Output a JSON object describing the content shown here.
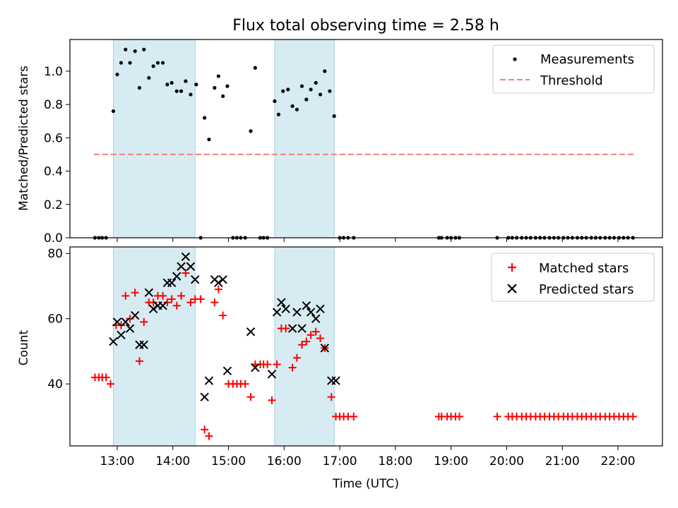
{
  "chart_data": [
    {
      "type": "scatter",
      "title": "Flux total observing time = 2.58 h",
      "xlabel": "",
      "ylabel": "Matched/Predicted stars",
      "ylim": [
        0,
        1.19
      ],
      "yticks": [
        "0.0",
        "0.2",
        "0.4",
        "0.6",
        "0.8",
        "1.0"
      ],
      "ytick_values": [
        0,
        0.2,
        0.4,
        0.6,
        0.8,
        1.0
      ],
      "legend_position": "top-right",
      "shaded_intervals": [
        [
          12.93,
          14.4
        ],
        [
          15.83,
          16.9
        ]
      ],
      "series": [
        {
          "name": "Measurements",
          "marker": "dot",
          "color": "#000000",
          "points": [
            [
              12.6,
              0
            ],
            [
              12.67,
              0
            ],
            [
              12.73,
              0
            ],
            [
              12.8,
              0
            ],
            [
              12.93,
              0.76
            ],
            [
              13.0,
              0.98
            ],
            [
              13.07,
              1.05
            ],
            [
              13.15,
              1.13
            ],
            [
              13.23,
              1.05
            ],
            [
              13.32,
              1.12
            ],
            [
              13.4,
              0.9
            ],
            [
              13.48,
              1.13
            ],
            [
              13.57,
              0.96
            ],
            [
              13.65,
              1.03
            ],
            [
              13.73,
              1.05
            ],
            [
              13.82,
              1.05
            ],
            [
              13.9,
              0.92
            ],
            [
              13.98,
              0.93
            ],
            [
              14.07,
              0.88
            ],
            [
              14.15,
              0.88
            ],
            [
              14.23,
              0.94
            ],
            [
              14.32,
              0.86
            ],
            [
              14.42,
              0.92
            ],
            [
              14.5,
              0
            ],
            [
              14.57,
              0.72
            ],
            [
              14.65,
              0.59
            ],
            [
              14.75,
              0.9
            ],
            [
              14.82,
              0.97
            ],
            [
              14.9,
              0.85
            ],
            [
              14.98,
              0.91
            ],
            [
              15.08,
              0
            ],
            [
              15.15,
              0
            ],
            [
              15.22,
              0
            ],
            [
              15.3,
              0
            ],
            [
              15.4,
              0.64
            ],
            [
              15.48,
              1.02
            ],
            [
              15.57,
              0
            ],
            [
              15.63,
              0
            ],
            [
              15.7,
              0
            ],
            [
              15.83,
              0.82
            ],
            [
              15.9,
              0.74
            ],
            [
              15.98,
              0.88
            ],
            [
              16.07,
              0.89
            ],
            [
              16.15,
              0.79
            ],
            [
              16.23,
              0.77
            ],
            [
              16.32,
              0.91
            ],
            [
              16.4,
              0.83
            ],
            [
              16.48,
              0.89
            ],
            [
              16.57,
              0.93
            ],
            [
              16.65,
              0.86
            ],
            [
              16.73,
              1.0
            ],
            [
              16.82,
              0.88
            ],
            [
              16.9,
              0.73
            ],
            [
              17.0,
              0
            ],
            [
              17.07,
              0
            ],
            [
              17.15,
              0
            ],
            [
              17.25,
              0
            ],
            [
              18.78,
              0
            ],
            [
              18.83,
              0
            ],
            [
              18.93,
              0
            ],
            [
              19.0,
              0
            ],
            [
              19.08,
              0
            ],
            [
              19.15,
              0
            ],
            [
              19.83,
              0
            ],
            [
              20.03,
              0
            ],
            [
              20.1,
              0
            ],
            [
              20.18,
              0
            ],
            [
              20.27,
              0
            ],
            [
              20.35,
              0
            ],
            [
              20.43,
              0
            ],
            [
              20.52,
              0
            ],
            [
              20.6,
              0
            ],
            [
              20.68,
              0
            ],
            [
              20.77,
              0
            ],
            [
              20.85,
              0
            ],
            [
              20.93,
              0
            ],
            [
              21.02,
              0
            ],
            [
              21.1,
              0
            ],
            [
              21.18,
              0
            ],
            [
              21.27,
              0
            ],
            [
              21.35,
              0
            ],
            [
              21.43,
              0
            ],
            [
              21.52,
              0
            ],
            [
              21.6,
              0
            ],
            [
              21.68,
              0
            ],
            [
              21.77,
              0
            ],
            [
              21.85,
              0
            ],
            [
              21.93,
              0
            ],
            [
              22.02,
              0
            ],
            [
              22.1,
              0
            ],
            [
              22.18,
              0
            ],
            [
              22.27,
              0
            ]
          ]
        },
        {
          "name": "Threshold",
          "marker": "dashed-line",
          "color": "#f08080",
          "points": [
            [
              12.58,
              0.5
            ],
            [
              22.3,
              0.5
            ]
          ]
        }
      ]
    },
    {
      "type": "scatter",
      "title": "",
      "xlabel": "Time (UTC)",
      "ylabel": "Count",
      "ylim": [
        21,
        82
      ],
      "yticks": [
        "40",
        "60",
        "80"
      ],
      "ytick_values": [
        40,
        60,
        80
      ],
      "xlim": [
        12.15,
        22.8
      ],
      "xticks": [
        "13:00",
        "14:00",
        "15:00",
        "16:00",
        "17:00",
        "18:00",
        "19:00",
        "20:00",
        "21:00",
        "22:00"
      ],
      "xtick_values": [
        13,
        14,
        15,
        16,
        17,
        18,
        19,
        20,
        21,
        22
      ],
      "legend_position": "top-right",
      "shaded_intervals": [
        [
          12.93,
          14.4
        ],
        [
          15.83,
          16.9
        ]
      ],
      "series": [
        {
          "name": "Matched stars",
          "marker": "plus",
          "color": "#ff0000",
          "points": [
            [
              12.6,
              42
            ],
            [
              12.67,
              42
            ],
            [
              12.73,
              42
            ],
            [
              12.8,
              42
            ],
            [
              12.88,
              40
            ],
            [
              12.98,
              58
            ],
            [
              13.07,
              58
            ],
            [
              13.15,
              67
            ],
            [
              13.23,
              60
            ],
            [
              13.32,
              68
            ],
            [
              13.4,
              47
            ],
            [
              13.48,
              59
            ],
            [
              13.57,
              65
            ],
            [
              13.65,
              65
            ],
            [
              13.73,
              67
            ],
            [
              13.82,
              67
            ],
            [
              13.9,
              65
            ],
            [
              13.98,
              66
            ],
            [
              14.07,
              64
            ],
            [
              14.15,
              67
            ],
            [
              14.23,
              74
            ],
            [
              14.32,
              65
            ],
            [
              14.4,
              66
            ],
            [
              14.5,
              66
            ],
            [
              14.57,
              26
            ],
            [
              14.65,
              24
            ],
            [
              14.75,
              65
            ],
            [
              14.82,
              69
            ],
            [
              14.9,
              61
            ],
            [
              15.0,
              40
            ],
            [
              15.08,
              40
            ],
            [
              15.15,
              40
            ],
            [
              15.22,
              40
            ],
            [
              15.3,
              40
            ],
            [
              15.4,
              36
            ],
            [
              15.48,
              46
            ],
            [
              15.57,
              46
            ],
            [
              15.63,
              46
            ],
            [
              15.7,
              46
            ],
            [
              15.78,
              35
            ],
            [
              15.87,
              46
            ],
            [
              15.95,
              57
            ],
            [
              16.03,
              57
            ],
            [
              16.15,
              45
            ],
            [
              16.23,
              48
            ],
            [
              16.32,
              52
            ],
            [
              16.4,
              53
            ],
            [
              16.48,
              55
            ],
            [
              16.57,
              56
            ],
            [
              16.65,
              54
            ],
            [
              16.73,
              51
            ],
            [
              16.85,
              36
            ],
            [
              16.93,
              30
            ],
            [
              17.0,
              30
            ],
            [
              17.07,
              30
            ],
            [
              17.15,
              30
            ],
            [
              17.25,
              30
            ],
            [
              18.78,
              30
            ],
            [
              18.83,
              30
            ],
            [
              18.93,
              30
            ],
            [
              19.0,
              30
            ],
            [
              19.08,
              30
            ],
            [
              19.15,
              30
            ],
            [
              19.83,
              30
            ],
            [
              20.03,
              30
            ],
            [
              20.1,
              30
            ],
            [
              20.18,
              30
            ],
            [
              20.27,
              30
            ],
            [
              20.35,
              30
            ],
            [
              20.43,
              30
            ],
            [
              20.52,
              30
            ],
            [
              20.6,
              30
            ],
            [
              20.68,
              30
            ],
            [
              20.77,
              30
            ],
            [
              20.85,
              30
            ],
            [
              20.93,
              30
            ],
            [
              21.02,
              30
            ],
            [
              21.1,
              30
            ],
            [
              21.18,
              30
            ],
            [
              21.27,
              30
            ],
            [
              21.35,
              30
            ],
            [
              21.43,
              30
            ],
            [
              21.52,
              30
            ],
            [
              21.6,
              30
            ],
            [
              21.68,
              30
            ],
            [
              21.77,
              30
            ],
            [
              21.85,
              30
            ],
            [
              21.93,
              30
            ],
            [
              22.02,
              30
            ],
            [
              22.1,
              30
            ],
            [
              22.18,
              30
            ],
            [
              22.27,
              30
            ]
          ]
        },
        {
          "name": "Predicted stars",
          "marker": "x",
          "color": "#000000",
          "points": [
            [
              12.93,
              53
            ],
            [
              13.0,
              59
            ],
            [
              13.07,
              55
            ],
            [
              13.15,
              59
            ],
            [
              13.23,
              57
            ],
            [
              13.32,
              61
            ],
            [
              13.4,
              52
            ],
            [
              13.48,
              52
            ],
            [
              13.57,
              68
            ],
            [
              13.65,
              63
            ],
            [
              13.73,
              64
            ],
            [
              13.82,
              64
            ],
            [
              13.9,
              71
            ],
            [
              13.98,
              71
            ],
            [
              14.07,
              73
            ],
            [
              14.15,
              76
            ],
            [
              14.23,
              79
            ],
            [
              14.32,
              76
            ],
            [
              14.4,
              72
            ],
            [
              14.57,
              36
            ],
            [
              14.65,
              41
            ],
            [
              14.75,
              72
            ],
            [
              14.82,
              71
            ],
            [
              14.9,
              72
            ],
            [
              14.98,
              44
            ],
            [
              15.4,
              56
            ],
            [
              15.48,
              45
            ],
            [
              15.78,
              43
            ],
            [
              15.87,
              62
            ],
            [
              15.95,
              65
            ],
            [
              16.03,
              63
            ],
            [
              16.15,
              57
            ],
            [
              16.23,
              62
            ],
            [
              16.32,
              57
            ],
            [
              16.4,
              64
            ],
            [
              16.48,
              62
            ],
            [
              16.57,
              60
            ],
            [
              16.65,
              63
            ],
            [
              16.73,
              51
            ],
            [
              16.85,
              41
            ],
            [
              16.93,
              41
            ]
          ]
        }
      ]
    }
  ]
}
